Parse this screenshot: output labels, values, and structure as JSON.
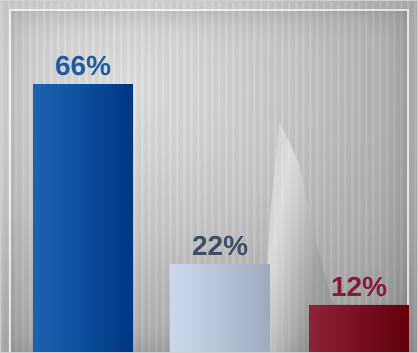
{
  "chart_data": {
    "type": "bar",
    "categories": [
      "",
      "",
      ""
    ],
    "values": [
      66,
      22,
      12
    ],
    "labels": [
      "66%",
      "22%",
      "12%"
    ],
    "colors": [
      "#0a4f9c",
      "#b7c3d6",
      "#7a0f24"
    ],
    "label_colors": [
      "#1f5c9e",
      "#3d4e66",
      "#8a1a33"
    ],
    "ylim": [
      0,
      70
    ],
    "title": "",
    "xlabel": "",
    "ylabel": "",
    "grid": false
  }
}
